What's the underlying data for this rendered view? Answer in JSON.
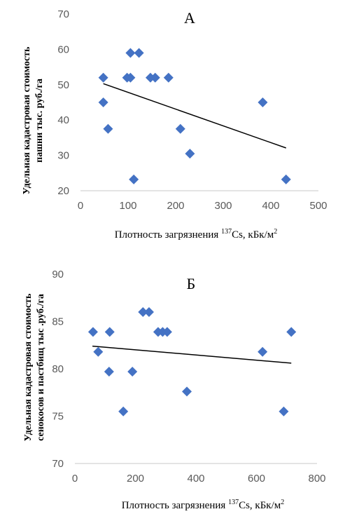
{
  "chart_data": [
    {
      "type": "scatter",
      "panel_label": "А",
      "ylabel_line1": "Удельная кадастровая стоимость",
      "ylabel_line2": "пашни тыс. руб./га",
      "xlabel_prefix": "Плотность загрязнения ",
      "xlabel_sup": "137",
      "xlabel_mid": "Cs, кБк/м",
      "xlabel_unit_sup": "2",
      "xlim": [
        0,
        500
      ],
      "ylim": [
        20,
        70
      ],
      "xticks": [
        0,
        100,
        200,
        300,
        400,
        500
      ],
      "yticks": [
        20,
        30,
        40,
        50,
        60,
        70
      ],
      "marker_color": "#4472C4",
      "trendline": [
        [
          48,
          50.3
        ],
        [
          432,
          32.1
        ]
      ],
      "points": [
        [
          48,
          52
        ],
        [
          48,
          45
        ],
        [
          58,
          37.5
        ],
        [
          98,
          52
        ],
        [
          105,
          59
        ],
        [
          105,
          52
        ],
        [
          112,
          23.2
        ],
        [
          123,
          59
        ],
        [
          147,
          52
        ],
        [
          157,
          52
        ],
        [
          185,
          52
        ],
        [
          210,
          37.5
        ],
        [
          230,
          30.5
        ],
        [
          383,
          45
        ],
        [
          432,
          23.2
        ]
      ]
    },
    {
      "type": "scatter",
      "panel_label": "Б",
      "ylabel_line1": "Удельная кадастровая стоимость",
      "ylabel_line2": "сенокосов и пастбищ тыс .руб./га",
      "xlabel_prefix": "Плотность загрязнения ",
      "xlabel_sup": "137",
      "xlabel_mid": "Cs, кБк/м",
      "xlabel_unit_sup": "2",
      "xlim": [
        0,
        800
      ],
      "ylim": [
        70,
        90
      ],
      "xticks": [
        0,
        200,
        400,
        600,
        800
      ],
      "yticks": [
        70,
        75,
        80,
        85,
        90
      ],
      "marker_color": "#4472C4",
      "trendline": [
        [
          58,
          82.4
        ],
        [
          715,
          80.6
        ]
      ],
      "points": [
        [
          60,
          83.9
        ],
        [
          77,
          81.8
        ],
        [
          113,
          79.7
        ],
        [
          115,
          83.9
        ],
        [
          160,
          75.5
        ],
        [
          190,
          79.7
        ],
        [
          225,
          86
        ],
        [
          245,
          86
        ],
        [
          275,
          83.9
        ],
        [
          290,
          83.9
        ],
        [
          305,
          83.9
        ],
        [
          370,
          77.6
        ],
        [
          620,
          81.8
        ],
        [
          690,
          75.5
        ],
        [
          715,
          83.9
        ]
      ]
    }
  ]
}
